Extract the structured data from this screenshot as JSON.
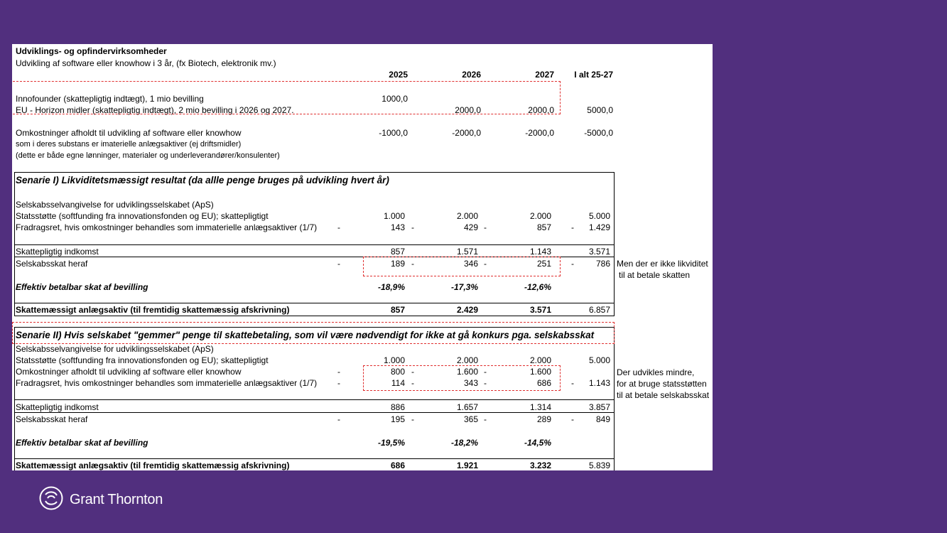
{
  "header": {
    "title": "Udviklings- og opfindervirksomheder",
    "subtitle": "Udvikling af software eller knowhow i 3 år, (fx Biotech, elektronik mv.)",
    "years": [
      "2025",
      "2026",
      "2027",
      "I alt 25-27"
    ]
  },
  "intro": {
    "innofounder": {
      "label": "Innofounder (skattepligtig indtægt), 1 mio bevilling",
      "v2025": "1000,0"
    },
    "eu": {
      "label": "EU - Horizon midler (skattepligtig indtægt), 2 mio bevilling i 2026 og 2027.",
      "v2026": "2000,0",
      "v2027": "2000,0",
      "total": "5000,0"
    },
    "costs": {
      "label": "Omkostninger afholdt til udvikling af software eller knowhow",
      "v2025": "-1000,0",
      "v2026": "-2000,0",
      "v2027": "-2000,0",
      "total": "-5000,0"
    },
    "note1": "som i deres substans er imaterielle anlægsaktiver (ej driftsmidler)",
    "note2": "(dette er både egne lønninger, materialer og underleverandører/konsulenter)"
  },
  "scenario1": {
    "title": "Senarie I) Likviditetsmæssigt resultat (da allle penge bruges på udvikling hvert år)",
    "subheading": "Selskabsselvangivelse for udviklingsselskabet (ApS)",
    "support": {
      "label": "Statsstøtte (softfunding fra innovationsfonden og EU); skattepligtigt",
      "v2025": "1.000",
      "v2026": "2.000",
      "v2027": "2.000",
      "total": "5.000"
    },
    "deduction": {
      "label": "Fradragsret, hvis omkostninger behandles som immaterielle anlægsaktiver (1/7)",
      "v2025": "143",
      "v2026": "429",
      "v2027": "857",
      "total": "1.429"
    },
    "taxable": {
      "label": "Skattepligtig indkomst",
      "v2025": "857",
      "v2026": "1.571",
      "v2027": "1.143",
      "total": "3.571"
    },
    "corptax": {
      "label": "Selskabsskat heraf",
      "v2025": "189",
      "v2026": "346",
      "v2027": "251",
      "total": "786"
    },
    "effective": {
      "label": "Effektiv betalbar skat af bevilling",
      "v2025": "-18,9%",
      "v2026": "-17,3%",
      "v2027": "-12,6%"
    },
    "asset": {
      "label": "Skattemæssigt anlægsaktiv (til fremtidig skattemæssig afskrivning)",
      "v2025": "857",
      "v2026": "2.429",
      "v2027": "3.571",
      "total": "6.857"
    },
    "side_note": [
      "Men der er ikke likviditet",
      "til at betale skatten"
    ]
  },
  "scenario2": {
    "title": "Senarie II) Hvis selskabet \"gemmer\" penge til skattebetaling, som vil være nødvendigt for ikke at gå konkurs pga. selskabsskat",
    "subheading": "Selskabsselvangivelse for udviklingsselskabet (ApS)",
    "support": {
      "label": "Statsstøtte (softfunding fra innovationsfonden og EU); skattepligtigt",
      "v2025": "1.000",
      "v2026": "2.000",
      "v2027": "2.000",
      "total": "5.000"
    },
    "costs": {
      "label": "Omkostninger afholdt til udvikling af software eller knowhow",
      "v2025": "800",
      "v2026": "1.600",
      "v2027": "1.600"
    },
    "deduction": {
      "label": "Fradragsret, hvis omkostninger behandles som immaterielle anlægsaktiver (1/7)",
      "v2025": "114",
      "v2026": "343",
      "v2027": "686",
      "total": "1.143"
    },
    "taxable": {
      "label": "Skattepligtig indkomst",
      "v2025": "886",
      "v2026": "1.657",
      "v2027": "1.314",
      "total": "3.857"
    },
    "corptax": {
      "label": "Selskabsskat heraf",
      "v2025": "195",
      "v2026": "365",
      "v2027": "289",
      "total": "849"
    },
    "effective": {
      "label": "Effektiv betalbar skat af bevilling",
      "v2025": "-19,5%",
      "v2026": "-18,2%",
      "v2027": "-14,5%"
    },
    "asset": {
      "label": "Skattemæssigt anlægsaktiv (til fremtidig skattemæssig afskrivning)",
      "v2025": "686",
      "v2026": "1.921",
      "v2027": "3.232",
      "total": "5.839"
    },
    "side_note": [
      "Der udvikles mindre,",
      "for at bruge statsstøtten",
      "til at betale selskabsskat"
    ]
  },
  "dash_char": "-",
  "brand": {
    "name": "Grant Thornton",
    "logo_icon": "grant-thornton-swirl-icon",
    "background": "#512f7e",
    "highlight": "#e03030"
  }
}
